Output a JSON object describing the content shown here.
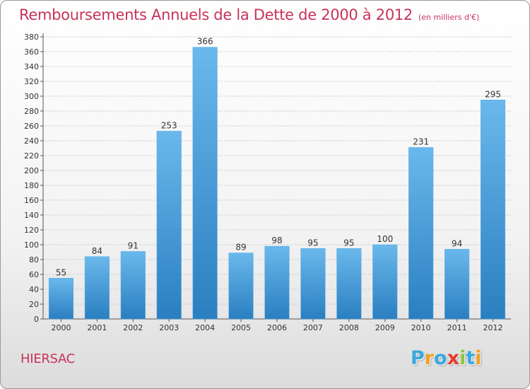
{
  "header": {
    "title": "Remboursements Annuels de la Dette de 2000 à 2012",
    "subtitle": "(en milliers d'€)"
  },
  "footer": {
    "town": "HIERSAC",
    "logo_letters": [
      "P",
      "r",
      "o",
      "x",
      "i",
      "t",
      "i"
    ],
    "logo_colors": [
      "#3aa8dc",
      "#f0a020",
      "#3aa8dc",
      "#e43c2e",
      "#8cc63f",
      "#3aa8dc",
      "#f0a020"
    ]
  },
  "colors": {
    "bar_light": "#6ab8ec",
    "bar_dark": "#2a7fc0",
    "title": "#c8325a",
    "grid": "#c8c8c8"
  },
  "chart_data": {
    "type": "bar",
    "categories": [
      "2000",
      "2001",
      "2002",
      "2003",
      "2004",
      "2005",
      "2006",
      "2007",
      "2008",
      "2009",
      "2010",
      "2011",
      "2012"
    ],
    "values": [
      55,
      84,
      91,
      253,
      366,
      89,
      98,
      95,
      95,
      100,
      231,
      94,
      295
    ],
    "data_labels": [
      "55",
      "84",
      "91",
      "253",
      "366",
      "89",
      "98",
      "95",
      "95",
      "100",
      "231",
      "94",
      "295"
    ],
    "title": "Remboursements Annuels de la Dette de 2000 à 2012",
    "xlabel": "",
    "ylabel": "",
    "ylim": [
      0,
      380
    ],
    "ytick_step": 20,
    "grid": true
  }
}
